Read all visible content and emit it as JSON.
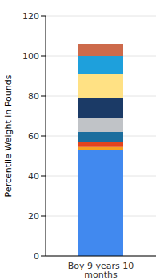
{
  "chart_data": {
    "type": "bar",
    "stacked": true,
    "ylabel": "Percentile Weight in Pounds",
    "categories": [
      "Boy 9 years 10 months"
    ],
    "series": [
      {
        "color": "#4189ef",
        "values": [
          53
        ]
      },
      {
        "color": "#f5a020",
        "values": [
          1.5
        ]
      },
      {
        "color": "#e4441d",
        "values": [
          2.5
        ]
      },
      {
        "color": "#1c6e9e",
        "values": [
          5
        ]
      },
      {
        "color": "#c0c3c7",
        "values": [
          7
        ]
      },
      {
        "color": "#1b3a66",
        "values": [
          10
        ]
      },
      {
        "color": "#ffe184",
        "values": [
          12
        ]
      },
      {
        "color": "#1ea0dc",
        "values": [
          9
        ]
      },
      {
        "color": "#cd6a4b",
        "values": [
          6
        ]
      }
    ],
    "ylim": [
      0,
      120
    ],
    "yticks": [
      0,
      20,
      40,
      60,
      80,
      100,
      120
    ],
    "grid": true
  }
}
